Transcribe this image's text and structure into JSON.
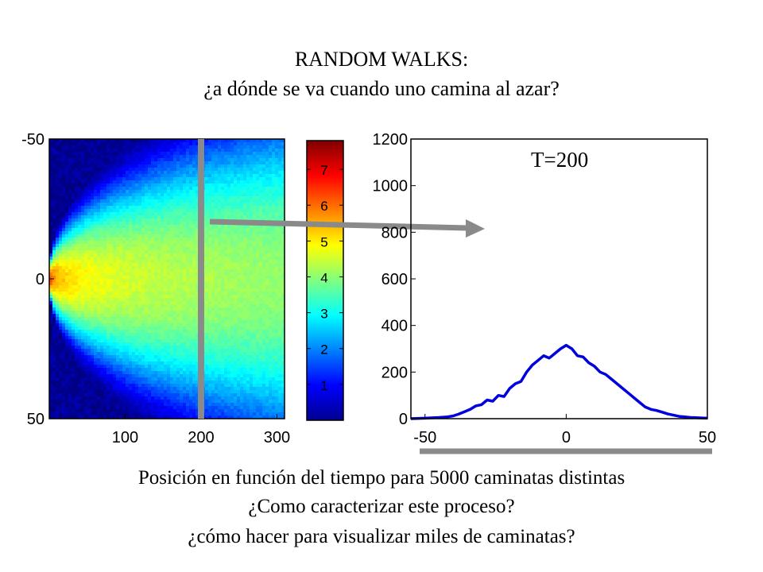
{
  "header": {
    "title": "RANDOM WALKS:",
    "subtitle": "¿a dónde se va cuando uno camina al azar?"
  },
  "captions": {
    "line1": "Posición en función del tiempo para 5000 caminatas distintas",
    "line2": "¿Como caracterizar este proceso?",
    "line3": "¿cómo hacer para visualizar  miles de caminatas?"
  },
  "chart_data": [
    {
      "type": "heatmap",
      "title": "",
      "xlabel": "",
      "ylabel": "",
      "xlim": [
        0,
        310
      ],
      "ylim": [
        -50,
        50
      ],
      "x_ticks": [
        "100",
        "200",
        "300"
      ],
      "y_ticks": [
        "-50",
        "0",
        "50"
      ],
      "y_reversed": true,
      "colormap": "jet",
      "colorbar": {
        "range": [
          0,
          7.8
        ],
        "ticks": [
          "1",
          "2",
          "3",
          "4",
          "5",
          "6",
          "7"
        ]
      },
      "slice_marker_x": 200,
      "colors": {
        "slice_marker": "#8a8a8a"
      }
    },
    {
      "type": "line",
      "annotation": "T=200",
      "xlabel": "",
      "ylabel": "",
      "xlim": [
        -55,
        50
      ],
      "ylim": [
        0,
        1200
      ],
      "x_ticks": [
        "-50",
        "0",
        "50"
      ],
      "y_ticks": [
        "0",
        "200",
        "400",
        "600",
        "800",
        "1000",
        "1200"
      ],
      "series": [
        {
          "color": "#0000dd",
          "x": [
            -55,
            -50,
            -45,
            -42,
            -40,
            -38,
            -36,
            -34,
            -32,
            -30,
            -28,
            -26,
            -24,
            -22,
            -20,
            -18,
            -16,
            -14,
            -12,
            -10,
            -8,
            -6,
            -4,
            -2,
            0,
            2,
            4,
            6,
            8,
            10,
            12,
            14,
            16,
            18,
            20,
            22,
            24,
            26,
            28,
            30,
            32,
            34,
            36,
            38,
            40,
            42,
            44,
            46,
            48,
            50
          ],
          "y": [
            0,
            2,
            5,
            8,
            12,
            20,
            30,
            40,
            55,
            60,
            80,
            75,
            100,
            95,
            130,
            150,
            160,
            200,
            230,
            250,
            270,
            260,
            280,
            300,
            315,
            300,
            270,
            265,
            240,
            225,
            200,
            190,
            170,
            150,
            130,
            110,
            90,
            70,
            50,
            40,
            35,
            28,
            20,
            15,
            10,
            8,
            5,
            4,
            3,
            2
          ]
        }
      ]
    }
  ]
}
